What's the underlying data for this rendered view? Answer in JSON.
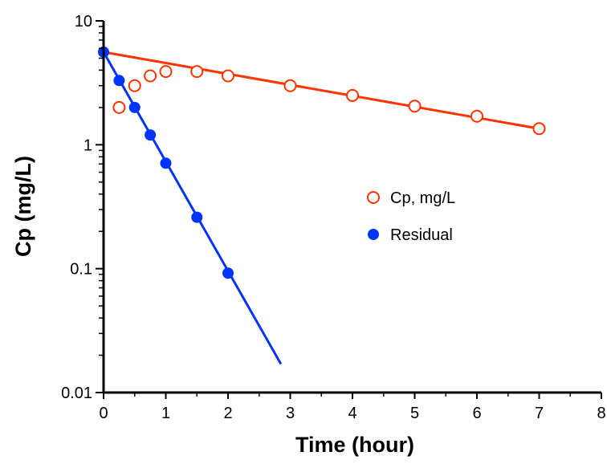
{
  "chart_data": {
    "type": "scatter",
    "title": "",
    "xlabel": "Time (hour)",
    "ylabel": "Cp (mg/L)",
    "xlim": [
      0,
      8
    ],
    "ylim": [
      0.01,
      10
    ],
    "yscale": "log",
    "grid": false,
    "legend_position": "center-right",
    "x_ticks": [
      "0",
      "1",
      "2",
      "3",
      "4",
      "5",
      "6",
      "7",
      "8"
    ],
    "y_ticks": [
      "0.01",
      "0.1",
      "1",
      "10"
    ],
    "series": [
      {
        "name": "Cp, mg/L",
        "marker": "open-circle",
        "color": "#ff3300",
        "x": [
          0.25,
          0.5,
          0.75,
          1,
          1.5,
          2,
          3,
          4,
          5,
          6,
          7
        ],
        "y": [
          2.0,
          3.0,
          3.6,
          3.9,
          3.9,
          3.6,
          3.0,
          2.5,
          2.05,
          1.7,
          1.35
        ]
      },
      {
        "name": "Residual",
        "marker": "filled-circle",
        "color": "#0033ff",
        "x": [
          0,
          0.25,
          0.5,
          0.75,
          1,
          1.5,
          2
        ],
        "y": [
          5.6,
          3.3,
          2.0,
          1.2,
          0.71,
          0.26,
          0.092
        ]
      }
    ],
    "fit_lines": [
      {
        "color": "#ff3300",
        "x": [
          0,
          7
        ],
        "y": [
          5.6,
          1.35
        ]
      },
      {
        "color": "#0033ff",
        "x": [
          0,
          2.85
        ],
        "y": [
          5.6,
          0.017
        ]
      }
    ]
  }
}
